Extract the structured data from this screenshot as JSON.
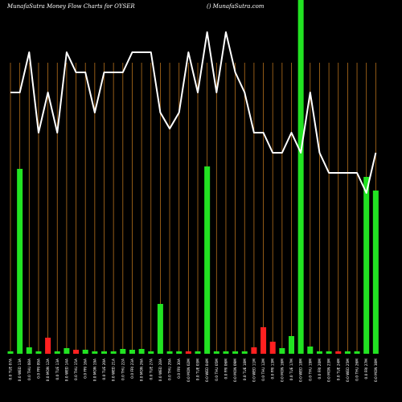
{
  "header": {
    "left_text": "MunafaSutra  Money Flow  Charts for OYSER",
    "right_text": "() MunafaSutra.com"
  },
  "colors": {
    "background": "#000000",
    "grid_line": "#b5701c",
    "line": "#ffffff",
    "bar_up": "#22e322",
    "bar_down": "#ff2020",
    "text": "#ffffff"
  },
  "chart_data": {
    "type": "bar",
    "title": "MunafaSutra  Money Flow  Charts for OYSER",
    "categories": [
      "0.0 TUE 07A",
      "0.0 WED 13A",
      "0.0 THU 08A",
      "0.0 FRI 09A",
      "0.0 MON 12A",
      "0.0 TUE 13A",
      "0.0 WED 14A",
      "0.0 THU 15A",
      "0.0 FRI 16A",
      "0.0 MON 19A",
      "0.0 TUE 20A",
      "0.0 WED 21A",
      "0.0 THU 22A",
      "0.0 FRI 23A",
      "0.0 MON 26A",
      "0.0 TUE 27A",
      "0.0 WED 28A",
      "0.0 THU 29A",
      "0.0 FRI 30A",
      "0.0 MON 02M",
      "0.0 TUE 03M",
      "0.0 WED 04M",
      "0.0 THU 05M",
      "0.0 FRI 06M",
      "0.0 MON 09M",
      "0.0 TUE 10M",
      "0.0 WED 11M",
      "0.0 THU 12M",
      "0.0 FRI 13M",
      "0.0 MON 16M",
      "0.0 TUE 17M",
      "0.0 WED 18M",
      "0.0 THU 19M",
      "0.0 FRI 20M",
      "0.0 MON 23M",
      "0.0 TUE 24M",
      "0.0 WED 25M",
      "0.0 THU 26M",
      "0.0 FRI 27M",
      "0.0 MON 30M"
    ],
    "series": [
      {
        "kind": "bar",
        "values": [
          3,
          230,
          8,
          3,
          20,
          3,
          7,
          5,
          5,
          3,
          3,
          3,
          6,
          5,
          6,
          3,
          62,
          3,
          3,
          3,
          3,
          233,
          3,
          3,
          3,
          3,
          8,
          33,
          15,
          7,
          22,
          440,
          9,
          3,
          3,
          3,
          3,
          3,
          220,
          203
        ],
        "direction": [
          "up",
          "up",
          "up",
          "up",
          "down",
          "up",
          "up",
          "down",
          "up",
          "up",
          "up",
          "up",
          "up",
          "up",
          "up",
          "up",
          "up",
          "up",
          "up",
          "down",
          "up",
          "up",
          "up",
          "up",
          "up",
          "up",
          "down",
          "down",
          "down",
          "up",
          "up",
          "up",
          "up",
          "up",
          "up",
          "down",
          "up",
          "up",
          "up",
          "up"
        ]
      },
      {
        "kind": "line",
        "values": [
          325,
          325,
          375,
          275,
          325,
          275,
          375,
          350,
          350,
          300,
          350,
          350,
          350,
          375,
          375,
          375,
          300,
          280,
          300,
          375,
          325,
          400,
          325,
          400,
          350,
          325,
          275,
          275,
          250,
          250,
          275,
          250,
          325,
          250,
          225,
          225,
          225,
          225,
          200,
          250
        ]
      }
    ],
    "ylim": [
      0,
      440
    ],
    "grid": "vertical"
  }
}
